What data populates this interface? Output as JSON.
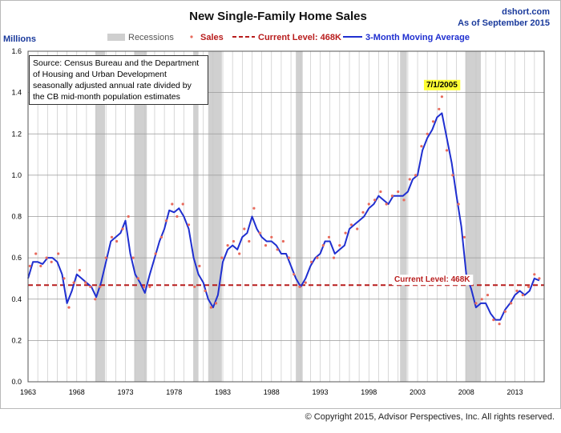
{
  "chart_data": {
    "type": "line",
    "title": "New Single-Family Home Sales",
    "site": "dshort.com",
    "as_of": "As of September 2015",
    "ylabel": "Millions",
    "ylim": [
      0.0,
      1.6
    ],
    "yticks": [
      "0.0",
      "0.2",
      "0.4",
      "0.6",
      "0.8",
      "1.0",
      "1.2",
      "1.4",
      "1.6"
    ],
    "xlim": [
      1963,
      2016.0
    ],
    "xticks": [
      "1963",
      "1968",
      "1973",
      "1978",
      "1983",
      "1988",
      "1993",
      "1998",
      "2003",
      "2008",
      "2013"
    ],
    "legend": {
      "recessions": "Recessions",
      "sales": "Sales",
      "current_level": "Current Level: 468K",
      "moving_average": "3-Month Moving Average"
    },
    "current_level_value": 0.468,
    "current_level_label": "Current Level: 468K",
    "peak_label": "7/1/2005",
    "peak_point": [
      2005.5,
      1.38
    ],
    "source_lines": [
      "Source: Census Bureau and the Department",
      "of Housing and Urban Development",
      "seasonally adjusted annual rate divided by",
      "the CB mid-month population estimates"
    ],
    "copyright": "© Copyright 2015, Advisor Perspectives, Inc. All rights reserved.",
    "recessions": [
      [
        1969.9,
        1970.9
      ],
      [
        1973.9,
        1975.2
      ],
      [
        1980.0,
        1980.5
      ],
      [
        1981.5,
        1982.9
      ],
      [
        1990.5,
        1991.2
      ],
      [
        2001.2,
        2001.9
      ],
      [
        2007.9,
        2009.5
      ]
    ],
    "series": [
      {
        "name": "3-Month Moving Average",
        "color": "#1f2fd0",
        "x": [
          1963.0,
          1963.5,
          1964.0,
          1964.5,
          1965.0,
          1965.5,
          1966.0,
          1966.5,
          1967.0,
          1967.5,
          1968.0,
          1968.5,
          1969.0,
          1969.5,
          1970.0,
          1970.5,
          1971.0,
          1971.5,
          1972.0,
          1972.5,
          1973.0,
          1973.5,
          1974.0,
          1974.5,
          1975.0,
          1975.5,
          1976.0,
          1976.5,
          1977.0,
          1977.5,
          1978.0,
          1978.5,
          1979.0,
          1979.5,
          1980.0,
          1980.5,
          1981.0,
          1981.5,
          1982.0,
          1982.5,
          1983.0,
          1983.5,
          1984.0,
          1984.5,
          1985.0,
          1985.5,
          1986.0,
          1986.5,
          1987.0,
          1987.5,
          1988.0,
          1988.5,
          1989.0,
          1989.5,
          1990.0,
          1990.5,
          1991.0,
          1991.5,
          1992.0,
          1992.5,
          1993.0,
          1993.5,
          1994.0,
          1994.5,
          1995.0,
          1995.5,
          1996.0,
          1996.5,
          1997.0,
          1997.5,
          1998.0,
          1998.5,
          1999.0,
          1999.5,
          2000.0,
          2000.5,
          2001.0,
          2001.5,
          2002.0,
          2002.5,
          2003.0,
          2003.5,
          2004.0,
          2004.5,
          2005.0,
          2005.5,
          2006.0,
          2006.5,
          2007.0,
          2007.5,
          2008.0,
          2008.5,
          2009.0,
          2009.5,
          2010.0,
          2010.5,
          2011.0,
          2011.5,
          2012.0,
          2012.5,
          2013.0,
          2013.5,
          2014.0,
          2014.5,
          2015.0,
          2015.5
        ],
        "y": [
          0.5,
          0.58,
          0.58,
          0.57,
          0.6,
          0.6,
          0.58,
          0.52,
          0.38,
          0.44,
          0.52,
          0.5,
          0.48,
          0.46,
          0.41,
          0.48,
          0.58,
          0.68,
          0.7,
          0.72,
          0.78,
          0.62,
          0.52,
          0.48,
          0.43,
          0.52,
          0.6,
          0.68,
          0.74,
          0.83,
          0.82,
          0.84,
          0.8,
          0.74,
          0.6,
          0.52,
          0.48,
          0.4,
          0.36,
          0.42,
          0.58,
          0.64,
          0.66,
          0.64,
          0.7,
          0.72,
          0.8,
          0.74,
          0.7,
          0.68,
          0.68,
          0.66,
          0.62,
          0.62,
          0.56,
          0.5,
          0.46,
          0.5,
          0.56,
          0.6,
          0.62,
          0.68,
          0.68,
          0.62,
          0.64,
          0.66,
          0.74,
          0.76,
          0.78,
          0.8,
          0.84,
          0.86,
          0.9,
          0.88,
          0.86,
          0.9,
          0.9,
          0.9,
          0.92,
          0.98,
          1.0,
          1.12,
          1.18,
          1.22,
          1.28,
          1.3,
          1.18,
          1.06,
          0.9,
          0.75,
          0.52,
          0.45,
          0.36,
          0.38,
          0.38,
          0.33,
          0.3,
          0.3,
          0.35,
          0.38,
          0.42,
          0.44,
          0.42,
          0.44,
          0.5,
          0.49
        ]
      },
      {
        "name": "Sales",
        "color": "#e86a5c",
        "x": [
          1963.2,
          1963.8,
          1964.3,
          1964.9,
          1965.4,
          1966.1,
          1966.7,
          1967.2,
          1967.7,
          1968.3,
          1968.9,
          1969.4,
          1969.9,
          1970.4,
          1971.0,
          1971.6,
          1972.1,
          1972.7,
          1973.3,
          1973.8,
          1974.3,
          1974.9,
          1975.5,
          1976.1,
          1976.7,
          1977.2,
          1977.8,
          1978.3,
          1978.9,
          1979.5,
          1980.1,
          1980.6,
          1981.2,
          1981.8,
          1982.3,
          1982.9,
          1983.5,
          1984.1,
          1984.7,
          1985.2,
          1985.7,
          1986.2,
          1986.8,
          1987.4,
          1988.0,
          1988.6,
          1989.2,
          1989.8,
          1990.3,
          1990.9,
          1991.5,
          1992.1,
          1992.7,
          1993.3,
          1993.9,
          1994.4,
          1995.0,
          1995.6,
          1996.2,
          1996.8,
          1997.4,
          1998.0,
          1998.6,
          1999.2,
          1999.8,
          2000.4,
          2001.0,
          2001.6,
          2002.2,
          2002.8,
          2003.4,
          2004.0,
          2004.6,
          2005.2,
          2005.5,
          2006.0,
          2006.6,
          2007.2,
          2007.8,
          2008.4,
          2009.0,
          2009.6,
          2010.2,
          2010.8,
          2011.4,
          2012.0,
          2012.6,
          2013.2,
          2013.8,
          2014.4,
          2015.0,
          2015.5
        ],
        "y": [
          0.56,
          0.62,
          0.56,
          0.6,
          0.58,
          0.62,
          0.5,
          0.36,
          0.48,
          0.54,
          0.48,
          0.46,
          0.4,
          0.46,
          0.6,
          0.7,
          0.68,
          0.74,
          0.8,
          0.6,
          0.5,
          0.46,
          0.46,
          0.62,
          0.7,
          0.78,
          0.86,
          0.8,
          0.86,
          0.76,
          0.46,
          0.56,
          0.44,
          0.36,
          0.38,
          0.6,
          0.66,
          0.68,
          0.62,
          0.74,
          0.68,
          0.84,
          0.72,
          0.66,
          0.7,
          0.64,
          0.68,
          0.6,
          0.52,
          0.46,
          0.48,
          0.58,
          0.6,
          0.66,
          0.7,
          0.6,
          0.66,
          0.72,
          0.76,
          0.74,
          0.82,
          0.86,
          0.88,
          0.92,
          0.86,
          0.9,
          0.92,
          0.88,
          0.98,
          1.0,
          1.14,
          1.2,
          1.26,
          1.32,
          1.38,
          1.12,
          1.0,
          0.86,
          0.7,
          0.48,
          0.38,
          0.4,
          0.42,
          0.3,
          0.28,
          0.34,
          0.38,
          0.44,
          0.42,
          0.46,
          0.52,
          0.5
        ]
      }
    ]
  }
}
